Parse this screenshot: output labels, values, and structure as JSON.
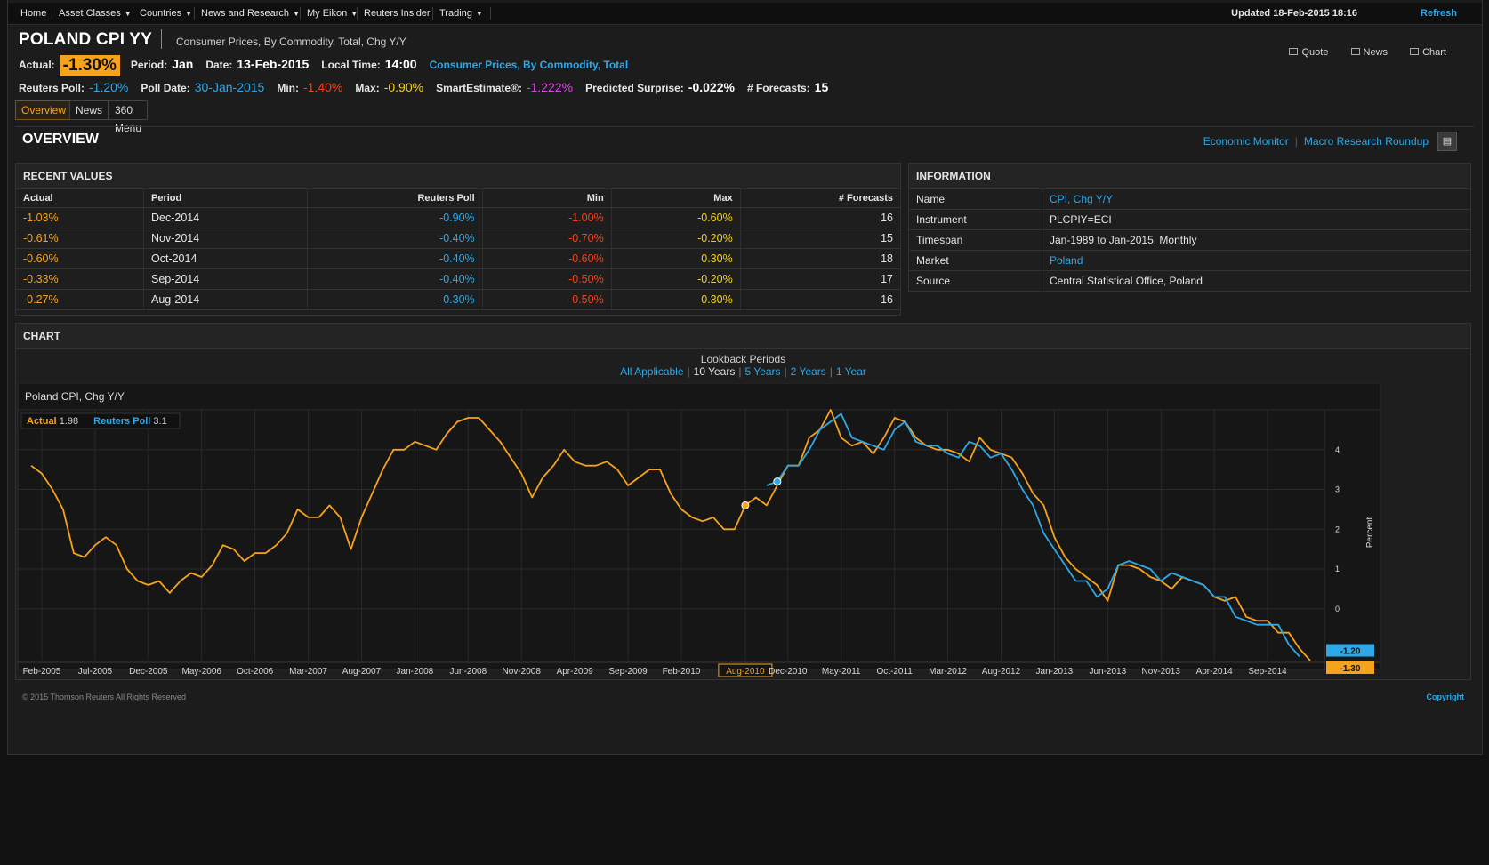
{
  "nav": {
    "items": [
      "Home",
      "Asset Classes",
      "Countries",
      "News and Research",
      "My Eikon",
      "Reuters Insider",
      "Trading"
    ],
    "updated": "Updated 18-Feb-2015 18:16",
    "refresh": "Refresh"
  },
  "header": {
    "title": "POLAND CPI YY",
    "subtitle": "Consumer Prices, By Commodity, Total, Chg Y/Y",
    "actual_label": "Actual:",
    "actual": "-1.30%",
    "period_label": "Period:",
    "period": "Jan",
    "date_label": "Date:",
    "date": "13-Feb-2015",
    "local_time_label": "Local Time:",
    "local_time": "14:00",
    "series_link": "Consumer Prices, By Commodity, Total",
    "poll_label": "Reuters Poll:",
    "poll": "-1.20%",
    "poll_date_label": "Poll Date:",
    "poll_date": "30-Jan-2015",
    "min_label": "Min:",
    "min": "-1.40%",
    "max_label": "Max:",
    "max": "-0.90%",
    "smart_label": "SmartEstimate®:",
    "smart": "-1.222%",
    "surprise_label": "Predicted Surprise:",
    "surprise": "-0.022%",
    "forecasts_label": "# Forecasts:",
    "forecasts": "15",
    "quote": "Quote",
    "news": "News",
    "chart": "Chart"
  },
  "tabs": [
    "Overview",
    "News",
    "360 Menu"
  ],
  "overview": {
    "title": "OVERVIEW",
    "economic_monitor": "Economic Monitor",
    "macro_roundup": "Macro Research Roundup"
  },
  "recent": {
    "title": "RECENT VALUES",
    "columns": [
      "Actual",
      "Period",
      "Reuters Poll",
      "Min",
      "Max",
      "# Forecasts"
    ],
    "rows": [
      [
        "-1.03%",
        "Dec-2014",
        "-0.90%",
        "-1.00%",
        "-0.60%",
        "16"
      ],
      [
        "-0.61%",
        "Nov-2014",
        "-0.40%",
        "-0.70%",
        "-0.20%",
        "15"
      ],
      [
        "-0.60%",
        "Oct-2014",
        "-0.40%",
        "-0.60%",
        "0.30%",
        "18"
      ],
      [
        "-0.33%",
        "Sep-2014",
        "-0.40%",
        "-0.50%",
        "-0.20%",
        "17"
      ],
      [
        "-0.27%",
        "Aug-2014",
        "-0.30%",
        "-0.50%",
        "0.30%",
        "16"
      ]
    ]
  },
  "info": {
    "title": "INFORMATION",
    "rows": [
      [
        "Name",
        "CPI, Chg Y/Y"
      ],
      [
        "Instrument",
        "PLCPIY=ECI"
      ],
      [
        "Timespan",
        "Jan-1989 to Jan-2015, Monthly"
      ],
      [
        "Market",
        "Poland"
      ],
      [
        "Source",
        "Central Statistical Office, Poland"
      ]
    ]
  },
  "chart_section": {
    "title": "CHART",
    "lookback_title": "Lookback Periods",
    "lookback": [
      "All Applicable",
      "10 Years",
      "5 Years",
      "2 Years",
      "1 Year"
    ],
    "selected": "10 Years",
    "chart_title": "Poland CPI, Chg Y/Y",
    "legend_actual": "Actual",
    "legend_actual_val": "1.98",
    "legend_poll": "Reuters Poll",
    "legend_poll_val": "3.1",
    "highlight_x": "Aug-2010",
    "last_poll": "-1.20",
    "last_actual": "-1.30"
  },
  "chart_data": {
    "type": "line",
    "ylabel": "Percent",
    "ylim": [
      -1.3,
      5.0
    ],
    "yticks": [
      0,
      1,
      2,
      3,
      4
    ],
    "xticks": [
      "Feb-2005",
      "Jul-2005",
      "Dec-2005",
      "May-2006",
      "Oct-2006",
      "Mar-2007",
      "Aug-2007",
      "Jan-2008",
      "Jun-2008",
      "Nov-2008",
      "Apr-2009",
      "Sep-2009",
      "Feb-2010",
      "Aug-2010",
      "Dec-2010",
      "May-2011",
      "Oct-2011",
      "Mar-2012",
      "Aug-2012",
      "Jan-2013",
      "Jun-2013",
      "Nov-2013",
      "Apr-2014",
      "Sep-2014"
    ],
    "colors": {
      "actual": "#f7a21b",
      "poll": "#2ea8e6"
    },
    "series": [
      {
        "name": "Actual",
        "start": "Jan-2005",
        "values": [
          3.6,
          3.4,
          3.0,
          2.5,
          1.4,
          1.3,
          1.6,
          1.8,
          1.6,
          1.0,
          0.7,
          0.6,
          0.7,
          0.4,
          0.7,
          0.9,
          0.8,
          1.1,
          1.6,
          1.5,
          1.2,
          1.4,
          1.4,
          1.6,
          1.9,
          2.5,
          2.3,
          2.3,
          2.6,
          2.3,
          1.5,
          2.3,
          2.9,
          3.5,
          4.0,
          4.0,
          4.2,
          4.1,
          4.0,
          4.4,
          4.7,
          4.8,
          4.8,
          4.5,
          4.2,
          3.8,
          3.4,
          2.8,
          3.3,
          3.6,
          4.0,
          3.7,
          3.6,
          3.6,
          3.7,
          3.5,
          3.1,
          3.3,
          3.5,
          3.5,
          2.9,
          2.5,
          2.3,
          2.2,
          2.3,
          2.0,
          2.0,
          2.6,
          2.8,
          2.6,
          3.1,
          3.6,
          3.6,
          4.3,
          4.5,
          5.0,
          4.3,
          4.1,
          4.2,
          3.9,
          4.3,
          4.8,
          4.7,
          4.3,
          4.1,
          4.0,
          4.0,
          3.9,
          3.7,
          4.3,
          4.0,
          3.9,
          3.8,
          3.4,
          2.9,
          2.6,
          1.8,
          1.3,
          1.0,
          0.8,
          0.6,
          0.2,
          1.1,
          1.1,
          1.0,
          0.8,
          0.7,
          0.5,
          0.8,
          0.7,
          0.6,
          0.3,
          0.2,
          0.3,
          -0.2,
          -0.3,
          -0.3,
          -0.6,
          -0.6,
          -1.0,
          -1.3
        ]
      },
      {
        "name": "Reuters Poll",
        "start": "Oct-2010",
        "values": [
          3.1,
          3.2,
          3.6,
          3.6,
          4.0,
          4.5,
          4.7,
          4.9,
          4.3,
          4.2,
          4.1,
          4.0,
          4.5,
          4.7,
          4.2,
          4.1,
          4.1,
          3.9,
          3.8,
          4.2,
          4.1,
          3.8,
          3.9,
          3.5,
          3.0,
          2.6,
          1.9,
          1.5,
          1.1,
          0.7,
          0.7,
          0.3,
          0.5,
          1.1,
          1.2,
          1.1,
          1.0,
          0.7,
          0.9,
          0.8,
          0.7,
          0.6,
          0.3,
          0.3,
          -0.2,
          -0.3,
          -0.4,
          -0.4,
          -0.4,
          -0.9,
          -1.2
        ]
      }
    ]
  }
}
